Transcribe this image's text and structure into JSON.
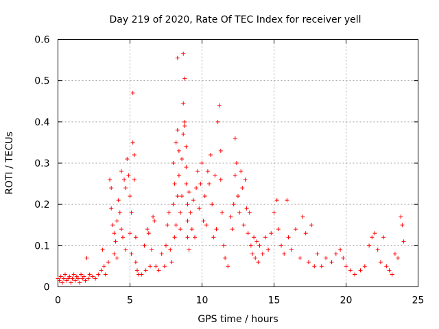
{
  "chart_data": {
    "type": "scatter",
    "title": "Day 219 of 2020, Rate Of TEC Index for receiver yell",
    "xlabel": "GPS time / hours",
    "ylabel": "ROTI / TECUs",
    "xlim": [
      0,
      25
    ],
    "ylim": [
      0,
      0.6
    ],
    "x_ticks": [
      0,
      5,
      10,
      15,
      20,
      25
    ],
    "x_tick_labels": [
      "0",
      "5",
      "10",
      "15",
      "20",
      "25"
    ],
    "y_ticks": [
      0,
      0.1,
      0.2,
      0.3,
      0.4,
      0.5,
      0.6
    ],
    "y_tick_labels": [
      "0",
      "0.1",
      "0.2",
      "0.3",
      "0.4",
      "0.5",
      "0.6"
    ],
    "grid": true,
    "marker": "plus",
    "color": "#ff0000",
    "series": [
      {
        "points": [
          [
            0.0,
            0.02
          ],
          [
            0.1,
            0.015
          ],
          [
            0.2,
            0.025
          ],
          [
            0.3,
            0.01
          ],
          [
            0.4,
            0.02
          ],
          [
            0.5,
            0.03
          ],
          [
            0.6,
            0.015
          ],
          [
            0.7,
            0.02
          ],
          [
            0.8,
            0.025
          ],
          [
            0.9,
            0.01
          ],
          [
            1.0,
            0.02
          ],
          [
            1.1,
            0.03
          ],
          [
            1.2,
            0.015
          ],
          [
            1.3,
            0.025
          ],
          [
            1.4,
            0.02
          ],
          [
            1.5,
            0.01
          ],
          [
            1.6,
            0.03
          ],
          [
            1.7,
            0.02
          ],
          [
            1.8,
            0.025
          ],
          [
            1.9,
            0.015
          ],
          [
            2.0,
            0.07
          ],
          [
            2.1,
            0.02
          ],
          [
            2.2,
            0.03
          ],
          [
            2.4,
            0.025
          ],
          [
            2.6,
            0.02
          ],
          [
            2.8,
            0.03
          ],
          [
            3.0,
            0.04
          ],
          [
            3.1,
            0.09
          ],
          [
            3.2,
            0.05
          ],
          [
            3.3,
            0.03
          ],
          [
            3.5,
            0.06
          ],
          [
            3.6,
            0.26
          ],
          [
            3.7,
            0.24
          ],
          [
            3.7,
            0.19
          ],
          [
            3.8,
            0.15
          ],
          [
            3.9,
            0.13
          ],
          [
            3.9,
            0.08
          ],
          [
            4.0,
            0.11
          ],
          [
            4.1,
            0.16
          ],
          [
            4.1,
            0.07
          ],
          [
            4.2,
            0.21
          ],
          [
            4.3,
            0.18
          ],
          [
            4.4,
            0.28
          ],
          [
            4.4,
            0.14
          ],
          [
            4.5,
            0.12
          ],
          [
            4.6,
            0.26
          ],
          [
            4.7,
            0.24
          ],
          [
            4.7,
            0.09
          ],
          [
            4.8,
            0.31
          ],
          [
            4.9,
            0.27
          ],
          [
            5.0,
            0.22
          ],
          [
            5.0,
            0.13
          ],
          [
            5.1,
            0.18
          ],
          [
            5.1,
            0.08
          ],
          [
            5.2,
            0.35
          ],
          [
            5.2,
            0.47
          ],
          [
            5.3,
            0.26
          ],
          [
            5.3,
            0.32
          ],
          [
            5.4,
            0.12
          ],
          [
            5.4,
            0.06
          ],
          [
            5.5,
            0.04
          ],
          [
            5.6,
            0.03
          ],
          [
            5.8,
            0.03
          ],
          [
            6.0,
            0.1
          ],
          [
            6.1,
            0.04
          ],
          [
            6.2,
            0.14
          ],
          [
            6.3,
            0.13
          ],
          [
            6.4,
            0.05
          ],
          [
            6.5,
            0.09
          ],
          [
            6.6,
            0.17
          ],
          [
            6.7,
            0.16
          ],
          [
            6.8,
            0.05
          ],
          [
            7.0,
            0.04
          ],
          [
            7.2,
            0.08
          ],
          [
            7.4,
            0.05
          ],
          [
            7.5,
            0.1
          ],
          [
            7.6,
            0.15
          ],
          [
            7.7,
            0.18
          ],
          [
            7.8,
            0.09
          ],
          [
            7.9,
            0.06
          ],
          [
            8.0,
            0.3
          ],
          [
            8.0,
            0.2
          ],
          [
            8.1,
            0.25
          ],
          [
            8.1,
            0.12
          ],
          [
            8.2,
            0.35
          ],
          [
            8.2,
            0.15
          ],
          [
            8.3,
            0.38
          ],
          [
            8.3,
            0.22
          ],
          [
            8.3,
            0.555
          ],
          [
            8.4,
            0.33
          ],
          [
            8.4,
            0.27
          ],
          [
            8.5,
            0.18
          ],
          [
            8.5,
            0.14
          ],
          [
            8.6,
            0.22
          ],
          [
            8.6,
            0.31
          ],
          [
            8.7,
            0.37
          ],
          [
            8.7,
            0.445
          ],
          [
            8.7,
            0.565
          ],
          [
            8.8,
            0.505
          ],
          [
            8.8,
            0.39
          ],
          [
            8.8,
            0.4
          ],
          [
            8.9,
            0.34
          ],
          [
            8.9,
            0.29
          ],
          [
            8.9,
            0.25
          ],
          [
            9.0,
            0.2
          ],
          [
            9.0,
            0.16
          ],
          [
            9.0,
            0.12
          ],
          [
            9.1,
            0.09
          ],
          [
            9.1,
            0.23
          ],
          [
            9.2,
            0.18
          ],
          [
            9.3,
            0.14
          ],
          [
            9.4,
            0.21
          ],
          [
            9.5,
            0.12
          ],
          [
            9.6,
            0.24
          ],
          [
            9.7,
            0.28
          ],
          [
            9.8,
            0.19
          ],
          [
            9.9,
            0.25
          ],
          [
            10.0,
            0.3
          ],
          [
            10.1,
            0.16
          ],
          [
            10.2,
            0.22
          ],
          [
            10.3,
            0.15
          ],
          [
            10.4,
            0.28
          ],
          [
            10.5,
            0.25
          ],
          [
            10.6,
            0.32
          ],
          [
            10.7,
            0.2
          ],
          [
            10.8,
            0.12
          ],
          [
            10.9,
            0.27
          ],
          [
            11.0,
            0.14
          ],
          [
            11.1,
            0.4
          ],
          [
            11.2,
            0.44
          ],
          [
            11.3,
            0.33
          ],
          [
            11.3,
            0.26
          ],
          [
            11.4,
            0.18
          ],
          [
            11.5,
            0.1
          ],
          [
            11.6,
            0.07
          ],
          [
            11.8,
            0.05
          ],
          [
            12.0,
            0.17
          ],
          [
            12.1,
            0.14
          ],
          [
            12.2,
            0.2
          ],
          [
            12.3,
            0.27
          ],
          [
            12.3,
            0.36
          ],
          [
            12.4,
            0.3
          ],
          [
            12.5,
            0.22
          ],
          [
            12.6,
            0.18
          ],
          [
            12.7,
            0.28
          ],
          [
            12.8,
            0.24
          ],
          [
            12.9,
            0.15
          ],
          [
            13.0,
            0.26
          ],
          [
            13.1,
            0.19
          ],
          [
            13.2,
            0.13
          ],
          [
            13.3,
            0.18
          ],
          [
            13.4,
            0.1
          ],
          [
            13.5,
            0.08
          ],
          [
            13.6,
            0.12
          ],
          [
            13.7,
            0.07
          ],
          [
            13.8,
            0.11
          ],
          [
            13.9,
            0.06
          ],
          [
            14.0,
            0.1
          ],
          [
            14.2,
            0.08
          ],
          [
            14.4,
            0.12
          ],
          [
            14.6,
            0.09
          ],
          [
            14.8,
            0.13
          ],
          [
            15.0,
            0.18
          ],
          [
            15.2,
            0.21
          ],
          [
            15.3,
            0.14
          ],
          [
            15.5,
            0.1
          ],
          [
            15.7,
            0.08
          ],
          [
            15.9,
            0.21
          ],
          [
            16.0,
            0.12
          ],
          [
            16.2,
            0.09
          ],
          [
            16.5,
            0.14
          ],
          [
            16.8,
            0.07
          ],
          [
            17.0,
            0.17
          ],
          [
            17.2,
            0.13
          ],
          [
            17.4,
            0.06
          ],
          [
            17.6,
            0.15
          ],
          [
            17.8,
            0.05
          ],
          [
            18.0,
            0.08
          ],
          [
            18.3,
            0.05
          ],
          [
            18.6,
            0.07
          ],
          [
            19.0,
            0.06
          ],
          [
            19.3,
            0.08
          ],
          [
            19.6,
            0.09
          ],
          [
            19.8,
            0.07
          ],
          [
            20.0,
            0.05
          ],
          [
            20.3,
            0.04
          ],
          [
            20.6,
            0.03
          ],
          [
            21.0,
            0.04
          ],
          [
            21.3,
            0.05
          ],
          [
            21.6,
            0.1
          ],
          [
            21.8,
            0.12
          ],
          [
            22.0,
            0.13
          ],
          [
            22.2,
            0.09
          ],
          [
            22.4,
            0.06
          ],
          [
            22.6,
            0.12
          ],
          [
            22.8,
            0.05
          ],
          [
            23.0,
            0.04
          ],
          [
            23.2,
            0.03
          ],
          [
            23.4,
            0.08
          ],
          [
            23.6,
            0.07
          ],
          [
            23.8,
            0.17
          ],
          [
            23.9,
            0.15
          ],
          [
            24.0,
            0.11
          ]
        ]
      }
    ]
  }
}
